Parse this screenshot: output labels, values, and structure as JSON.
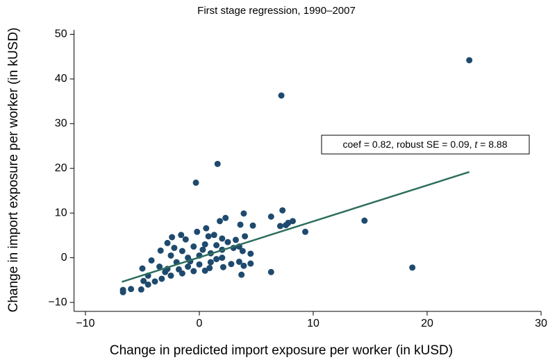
{
  "chart_data": {
    "type": "scatter",
    "title": "First stage regression, 1990–2007",
    "x_label": "Change in predicted import exposure per worker (in kUSD)",
    "y_label": "Change in import exposure per worker (in kUSD)",
    "annotation": [
      "coef = 0.82, robust SE = 0.09, ",
      "t",
      " = 8.88"
    ],
    "color": "#1f4a6e",
    "fit_line": {
      "color": "#2e6e5e",
      "x": [
        -6.8,
        23.7
      ],
      "y": [
        -5.4,
        19.2
      ]
    },
    "x": [
      23.7,
      7.2,
      1.6,
      -0.3,
      18.7,
      14.5,
      9.3,
      7.3,
      6.3,
      7.8,
      8.2,
      7.1,
      7.6,
      6.3,
      3.9,
      4.7,
      2.3,
      1.8,
      3.6,
      3.7,
      -6.7,
      -6.7,
      -6.0,
      -5.1,
      -4.9,
      -4.5,
      -5.0,
      -4.2,
      -3.4,
      -2.8,
      -2.4,
      -1.6,
      -1.2,
      -0.2,
      0.6,
      0.8,
      1.3,
      2.0,
      3.2,
      4.0,
      4.5,
      4.5,
      3.9,
      3.5,
      2.1,
      0.5,
      -0.5,
      -1.5,
      -2.5,
      -3.3,
      -3.9,
      -2.8,
      -2.0,
      -1.0,
      0.0,
      1.0,
      2.0,
      3.0,
      -1.5,
      -0.5,
      0.5,
      1.5,
      -2.5,
      -3.5,
      -1.0,
      0.0,
      1.0,
      2.0,
      2.5,
      3.5,
      -0.8,
      0.3,
      -1.8,
      1.5,
      -3.0,
      -4.5,
      -2.2,
      0.9,
      2.8,
      3.8
    ],
    "y": [
      44.2,
      36.3,
      21.0,
      16.8,
      -2.2,
      8.3,
      5.8,
      10.6,
      9.2,
      7.8,
      8.2,
      7.1,
      7.3,
      -3.2,
      9.9,
      7.2,
      8.9,
      8.2,
      7.4,
      -3.8,
      -7.7,
      -7.2,
      -7.0,
      -7.1,
      -5.2,
      -6.0,
      -2.4,
      -0.6,
      1.6,
      3.3,
      4.6,
      5.1,
      4.1,
      5.8,
      6.6,
      4.8,
      5.1,
      4.3,
      4.0,
      4.8,
      0.9,
      -1.3,
      -1.8,
      -0.9,
      -2.1,
      -2.9,
      -3.0,
      -3.5,
      -4.0,
      -4.7,
      -5.3,
      -2.5,
      -1.0,
      0.0,
      0.5,
      1.0,
      1.8,
      2.2,
      1.5,
      2.5,
      3.0,
      2.8,
      0.5,
      -2.0,
      -2.0,
      -1.5,
      -1.0,
      0.0,
      3.5,
      2.5,
      -0.8,
      1.8,
      -2.6,
      -0.3,
      -3.2,
      -4.0,
      2.2,
      -2.3,
      -1.4,
      1.5
    ],
    "xlim": [
      -11,
      30
    ],
    "ylim": [
      -12,
      51
    ],
    "xticks": [
      {
        "value": -10,
        "label": "−10"
      },
      0,
      10,
      20,
      30
    ],
    "yticks": [
      {
        "value": -10,
        "label": "−10"
      },
      0,
      10,
      20,
      30,
      40,
      50
    ]
  }
}
